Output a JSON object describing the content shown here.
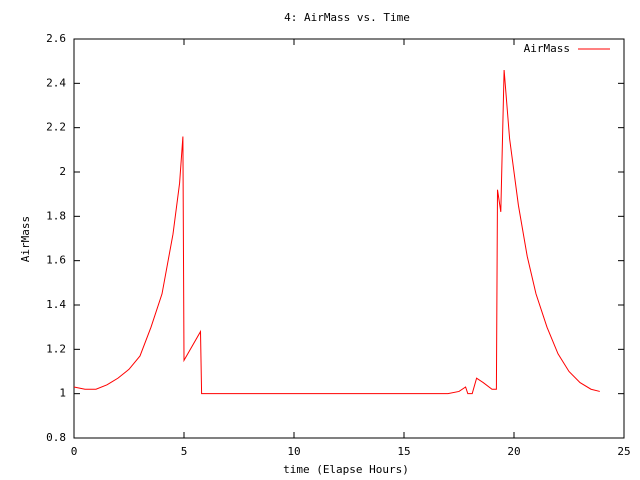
{
  "chart_data": {
    "type": "line",
    "title": "4: AirMass vs. Time",
    "xlabel": "time (Elapse Hours)",
    "ylabel": "AirMass",
    "x": [
      0,
      0.5,
      1,
      1.5,
      2,
      2.5,
      3,
      3.5,
      4,
      4.5,
      4.8,
      4.95,
      5.0,
      5.75,
      5.8,
      10,
      17,
      17.5,
      17.8,
      17.9,
      18.1,
      18.3,
      18.6,
      19.0,
      19.2,
      19.25,
      19.4,
      19.55,
      19.8,
      20.2,
      20.6,
      21,
      21.5,
      22,
      22.5,
      23,
      23.5,
      23.9
    ],
    "series": [
      {
        "name": "AirMass",
        "color": "#ff0000",
        "values": [
          1.03,
          1.02,
          1.02,
          1.04,
          1.07,
          1.11,
          1.17,
          1.3,
          1.45,
          1.72,
          1.95,
          2.16,
          1.15,
          1.28,
          1.0,
          1.0,
          1.0,
          1.01,
          1.03,
          1.0,
          1.0,
          1.07,
          1.05,
          1.02,
          1.02,
          1.92,
          1.82,
          2.46,
          2.15,
          1.85,
          1.62,
          1.45,
          1.3,
          1.18,
          1.1,
          1.05,
          1.02,
          1.01
        ]
      }
    ],
    "xlim": [
      0,
      25
    ],
    "xticks": [
      0,
      5,
      10,
      15,
      20,
      25
    ],
    "ylim": [
      0.8,
      2.6
    ],
    "yticks": [
      0.8,
      1,
      1.2,
      1.4,
      1.6,
      1.8,
      2,
      2.2,
      2.4,
      2.6
    ],
    "legend": "top-right"
  }
}
